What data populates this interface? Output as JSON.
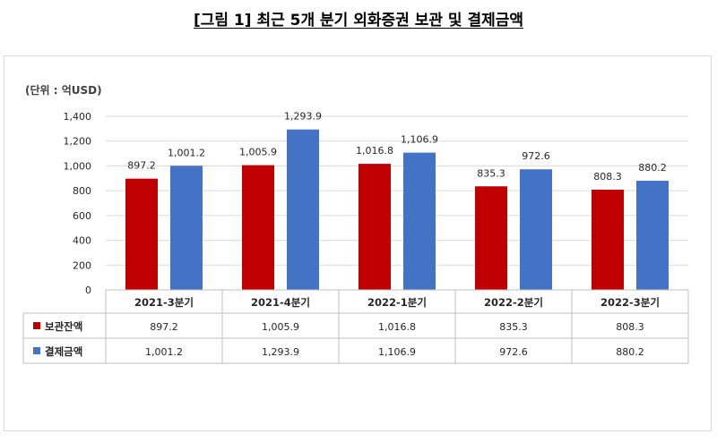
{
  "title": "[그림 1] 최근 5개 분기 외화증권 보관 및 결제금액",
  "unit_label": "(단위 : 억USD)",
  "colors": {
    "series1": "#C00000",
    "series2": "#4472C4",
    "grid": "#d9d9d9"
  },
  "chart_data": {
    "type": "bar",
    "title": "[그림 1] 최근 5개 분기 외화증권 보관 및 결제금액",
    "ylabel": "",
    "xlabel": "",
    "ylim": [
      0,
      1400
    ],
    "yticks": [
      "0",
      "200",
      "400",
      "600",
      "800",
      "1,000",
      "1,200",
      "1,400"
    ],
    "ytick_values": [
      0,
      200,
      400,
      600,
      800,
      1000,
      1200,
      1400
    ],
    "grid": true,
    "legend": "data-table",
    "categories": [
      "2021-3분기",
      "2021-4분기",
      "2022-1분기",
      "2022-2분기",
      "2022-3분기"
    ],
    "series": [
      {
        "name": "보관잔액",
        "values": [
          897.2,
          1005.9,
          1016.8,
          835.3,
          808.3
        ],
        "labels": [
          "897.2",
          "1,005.9",
          "1,016.8",
          "835.3",
          "808.3"
        ]
      },
      {
        "name": "결제금액",
        "values": [
          1001.2,
          1293.9,
          1106.9,
          972.6,
          880.2
        ],
        "labels": [
          "1,001.2",
          "1,293.9",
          "1,106.9",
          "972.6",
          "880.2"
        ]
      }
    ]
  }
}
